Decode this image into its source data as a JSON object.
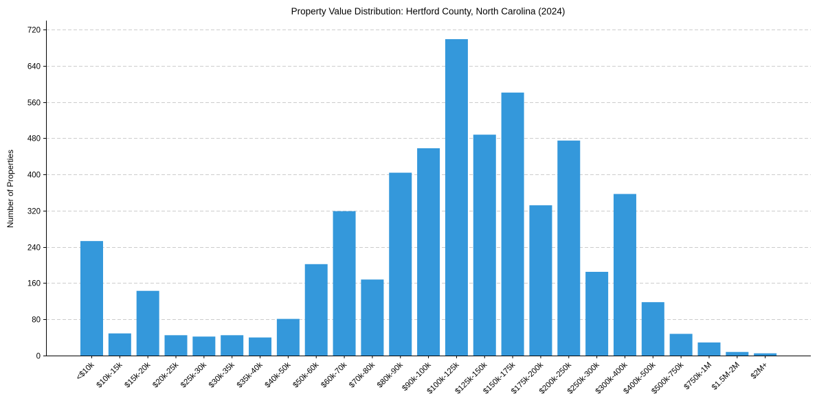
{
  "chart_data": {
    "type": "bar",
    "title": "Property Value Distribution: Hertford County, North Carolina (2024)",
    "xlabel": "",
    "ylabel": "Number of Properties",
    "categories": [
      "<$10k",
      "$10k-15k",
      "$15k-20k",
      "$20k-25k",
      "$25k-30k",
      "$30k-35k",
      "$35k-40k",
      "$40k-50k",
      "$50k-60k",
      "$60k-70k",
      "$70k-80k",
      "$80k-90k",
      "$90k-100k",
      "$100k-125k",
      "$125k-150k",
      "$150k-175k",
      "$175k-200k",
      "$200k-250k",
      "$250k-300k",
      "$300k-400k",
      "$400k-500k",
      "$500k-750k",
      "$750k-1M",
      "$1.5M-2M",
      "$2M+"
    ],
    "values": [
      253,
      49,
      143,
      45,
      42,
      45,
      40,
      81,
      202,
      319,
      168,
      404,
      458,
      699,
      488,
      581,
      332,
      475,
      185,
      357,
      118,
      48,
      29,
      8,
      5
    ],
    "ylim": [
      0,
      740
    ],
    "yticks": [
      0,
      80,
      160,
      240,
      320,
      400,
      480,
      560,
      640,
      720
    ],
    "grid": "y-dashed",
    "bar_color": "#3498db"
  }
}
